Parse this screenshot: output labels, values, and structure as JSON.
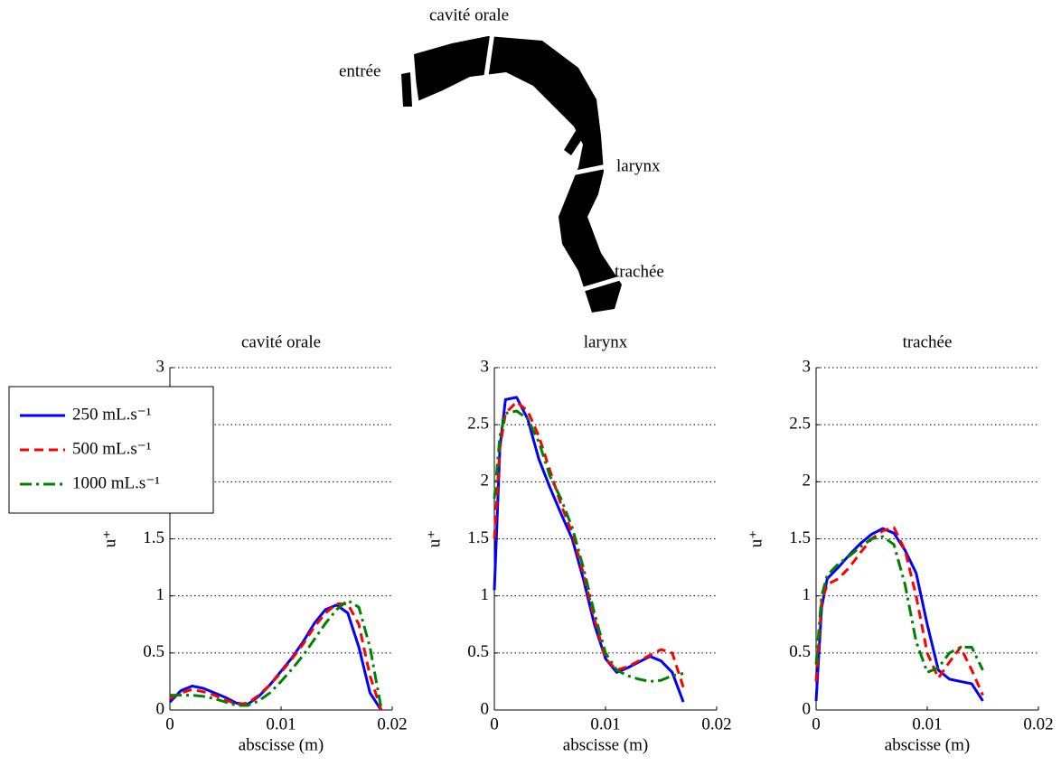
{
  "diagram": {
    "labels": [
      "entrée",
      "cavité orale",
      "larynx",
      "trachée"
    ]
  },
  "chart_data": [
    {
      "type": "line",
      "title": "cavité orale",
      "xlabel": "abscisse (m)",
      "ylabel": "u⁺",
      "xlim": [
        0,
        0.02
      ],
      "xticks": [
        0,
        0.01,
        0.02
      ],
      "ylim": [
        0,
        3
      ],
      "yticks": [
        0,
        0.5,
        1,
        1.5,
        2,
        2.5,
        3
      ],
      "grid": true,
      "legend": "upper left",
      "x": [
        0,
        0.001,
        0.002,
        0.003,
        0.004,
        0.005,
        0.006,
        0.007,
        0.008,
        0.009,
        0.01,
        0.011,
        0.012,
        0.013,
        0.014,
        0.015,
        0.016,
        0.017,
        0.018,
        0.019
      ],
      "series": [
        {
          "name": "250 mL.s⁻¹",
          "color": "#0000ff",
          "style": "solid",
          "values": [
            0.07,
            0.17,
            0.21,
            0.19,
            0.15,
            0.11,
            0.06,
            0.05,
            0.12,
            0.22,
            0.34,
            0.46,
            0.6,
            0.76,
            0.88,
            0.92,
            0.85,
            0.55,
            0.15,
            0
          ]
        },
        {
          "name": "500 mL.s⁻¹",
          "color": "#ff0000",
          "style": "dashed",
          "values": [
            0.1,
            0.15,
            0.18,
            0.16,
            0.13,
            0.09,
            0.05,
            0.06,
            0.13,
            0.22,
            0.33,
            0.45,
            0.58,
            0.73,
            0.85,
            0.93,
            0.93,
            0.75,
            0.3,
            0
          ]
        },
        {
          "name": "1000 mL.s⁻¹",
          "color": "#008000",
          "style": "dashdot",
          "values": [
            0.13,
            0.13,
            0.13,
            0.12,
            0.1,
            0.07,
            0.04,
            0.04,
            0.08,
            0.15,
            0.25,
            0.36,
            0.48,
            0.62,
            0.76,
            0.88,
            0.96,
            0.9,
            0.55,
            0.02
          ]
        }
      ]
    },
    {
      "type": "line",
      "title": "larynx",
      "xlabel": "abscisse (m)",
      "ylabel": "u⁺",
      "xlim": [
        0,
        0.02
      ],
      "xticks": [
        0,
        0.01,
        0.02
      ],
      "ylim": [
        0,
        3
      ],
      "yticks": [
        0,
        0.5,
        1,
        1.5,
        2,
        2.5,
        3
      ],
      "grid": true,
      "x": [
        0,
        0.0005,
        0.001,
        0.002,
        0.003,
        0.004,
        0.005,
        0.006,
        0.007,
        0.008,
        0.009,
        0.01,
        0.011,
        0.012,
        0.013,
        0.014,
        0.015,
        0.016,
        0.017
      ],
      "series": [
        {
          "color": "#0000ff",
          "style": "solid",
          "values": [
            1.05,
            2.3,
            2.72,
            2.74,
            2.55,
            2.2,
            1.95,
            1.72,
            1.5,
            1.15,
            0.75,
            0.45,
            0.33,
            0.37,
            0.42,
            0.47,
            0.43,
            0.33,
            0.07
          ]
        },
        {
          "color": "#ff0000",
          "style": "dashed",
          "values": [
            1.5,
            2.3,
            2.6,
            2.7,
            2.62,
            2.4,
            2.1,
            1.8,
            1.55,
            1.2,
            0.8,
            0.45,
            0.35,
            0.38,
            0.43,
            0.48,
            0.53,
            0.5,
            0.2
          ]
        },
        {
          "color": "#008000",
          "style": "dashdot",
          "values": [
            1.85,
            2.4,
            2.6,
            2.62,
            2.55,
            2.35,
            2.05,
            1.85,
            1.6,
            1.25,
            0.85,
            0.5,
            0.35,
            0.3,
            0.27,
            0.25,
            0.26,
            0.3,
            0.32
          ]
        }
      ]
    },
    {
      "type": "line",
      "title": "trachée",
      "xlabel": "abscisse (m)",
      "ylabel": "u⁺",
      "xlim": [
        0,
        0.02
      ],
      "xticks": [
        0,
        0.01,
        0.02
      ],
      "ylim": [
        0,
        3
      ],
      "yticks": [
        0,
        0.5,
        1,
        1.5,
        2,
        2.5,
        3
      ],
      "grid": true,
      "x": [
        0,
        0.0005,
        0.001,
        0.002,
        0.003,
        0.004,
        0.005,
        0.006,
        0.007,
        0.008,
        0.009,
        0.01,
        0.011,
        0.012,
        0.013,
        0.014,
        0.015
      ],
      "series": [
        {
          "color": "#0000ff",
          "style": "solid",
          "values": [
            0.08,
            0.9,
            1.15,
            1.25,
            1.36,
            1.46,
            1.54,
            1.59,
            1.55,
            1.4,
            1.2,
            0.75,
            0.35,
            0.27,
            0.25,
            0.23,
            0.08
          ]
        },
        {
          "color": "#ff0000",
          "style": "dashed",
          "values": [
            0.25,
            0.95,
            1.1,
            1.15,
            1.25,
            1.38,
            1.5,
            1.57,
            1.6,
            1.4,
            1,
            0.5,
            0.28,
            0.42,
            0.55,
            0.35,
            0.13
          ]
        },
        {
          "color": "#008000",
          "style": "dashdot",
          "values": [
            0.4,
            1,
            1.18,
            1.28,
            1.35,
            1.43,
            1.5,
            1.52,
            1.45,
            1.1,
            0.6,
            0.33,
            0.37,
            0.5,
            0.55,
            0.55,
            0.35
          ]
        }
      ]
    }
  ]
}
